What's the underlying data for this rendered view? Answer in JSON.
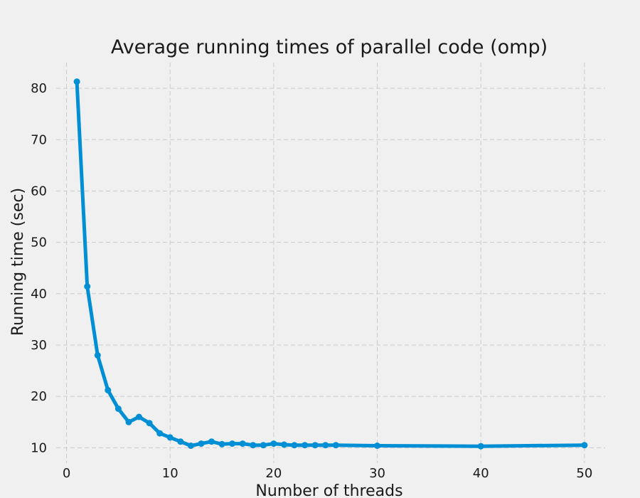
{
  "chart_data": {
    "type": "line",
    "title": "Average running times of parallel code (omp)",
    "xlabel": "Number of threads",
    "ylabel": "Running time (sec)",
    "xlim": [
      -1,
      52
    ],
    "ylim": [
      7,
      85
    ],
    "xticks": [
      0,
      10,
      20,
      30,
      40,
      50
    ],
    "yticks": [
      10,
      20,
      30,
      40,
      50,
      60,
      70,
      80
    ],
    "grid": true,
    "color": "#008fd5",
    "series": [
      {
        "x": [
          1,
          2,
          3,
          4,
          5,
          6,
          7,
          8,
          9,
          10,
          11,
          12,
          13,
          14,
          15,
          16,
          17,
          18,
          19,
          20,
          21,
          22,
          23,
          24,
          25,
          26,
          30,
          40,
          50
        ],
        "values": [
          81.3,
          41.4,
          28.0,
          21.2,
          17.6,
          15.0,
          16.0,
          14.8,
          12.8,
          12.0,
          11.2,
          10.4,
          10.8,
          11.2,
          10.7,
          10.8,
          10.8,
          10.5,
          10.5,
          10.8,
          10.6,
          10.5,
          10.5,
          10.5,
          10.5,
          10.5,
          10.4,
          10.3,
          10.5
        ]
      }
    ]
  }
}
